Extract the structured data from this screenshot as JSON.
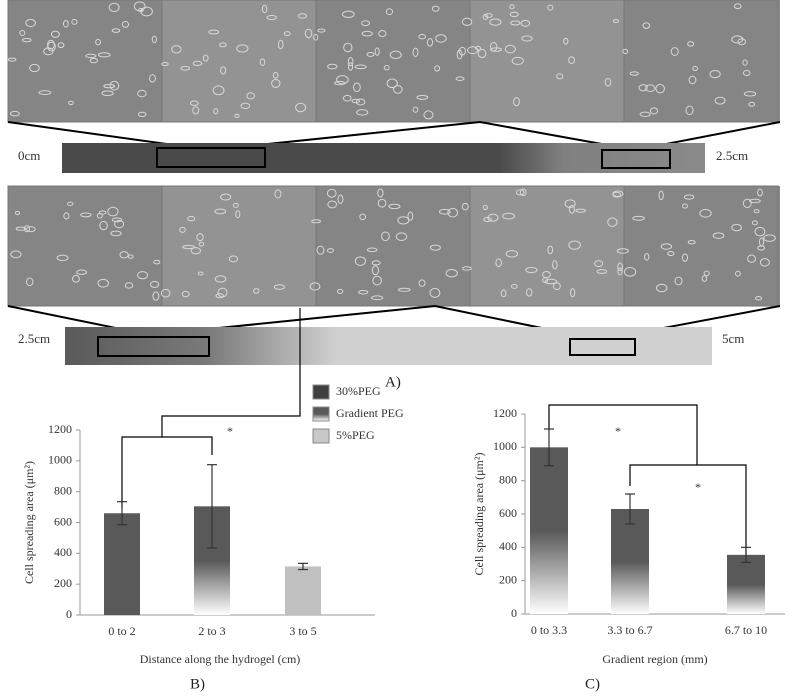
{
  "panel_a": {
    "strip_labels": [
      "0cm",
      "2.5cm",
      "2.5cm",
      "5cm"
    ],
    "panel_label": "A)"
  },
  "panel_labels": [
    "B)",
    "C)"
  ],
  "chart_data": [
    {
      "type": "bar",
      "categories": [
        "0 to 2",
        "2 to 3",
        "3 to 5"
      ],
      "values": [
        660,
        705,
        315
      ],
      "errors": [
        75,
        270,
        20
      ],
      "fills": [
        "#595959",
        "gradient",
        "#c0c0c0"
      ],
      "ylim": [
        0,
        1200
      ],
      "yticks": [
        0,
        200,
        400,
        600,
        800,
        1000,
        1200
      ],
      "ylabel": "Cell spreading area (μm²)",
      "xlabel": "Distance  along the hydrogel (cm)",
      "legend": [
        {
          "name": "30%PEG",
          "color": "#404040"
        },
        {
          "name": "Gradient PEG",
          "color": "gradient"
        },
        {
          "name": "5%PEG",
          "color": "#c8c8c8"
        }
      ],
      "annotations": [
        "*"
      ]
    },
    {
      "type": "bar",
      "categories": [
        "0 to 3.3",
        "3.3 to 6.7",
        "6.7 to 10"
      ],
      "values": [
        1000,
        630,
        355
      ],
      "errors": [
        110,
        90,
        45
      ],
      "fills": [
        "gradient",
        "gradient",
        "gradient"
      ],
      "ylim": [
        0,
        1200
      ],
      "yticks": [
        0,
        200,
        400,
        600,
        800,
        1000,
        1200
      ],
      "ylabel": "Cell  spreading area (μm²)",
      "xlabel": "Gradient region (mm)",
      "annotations": [
        "*",
        "*"
      ]
    }
  ]
}
